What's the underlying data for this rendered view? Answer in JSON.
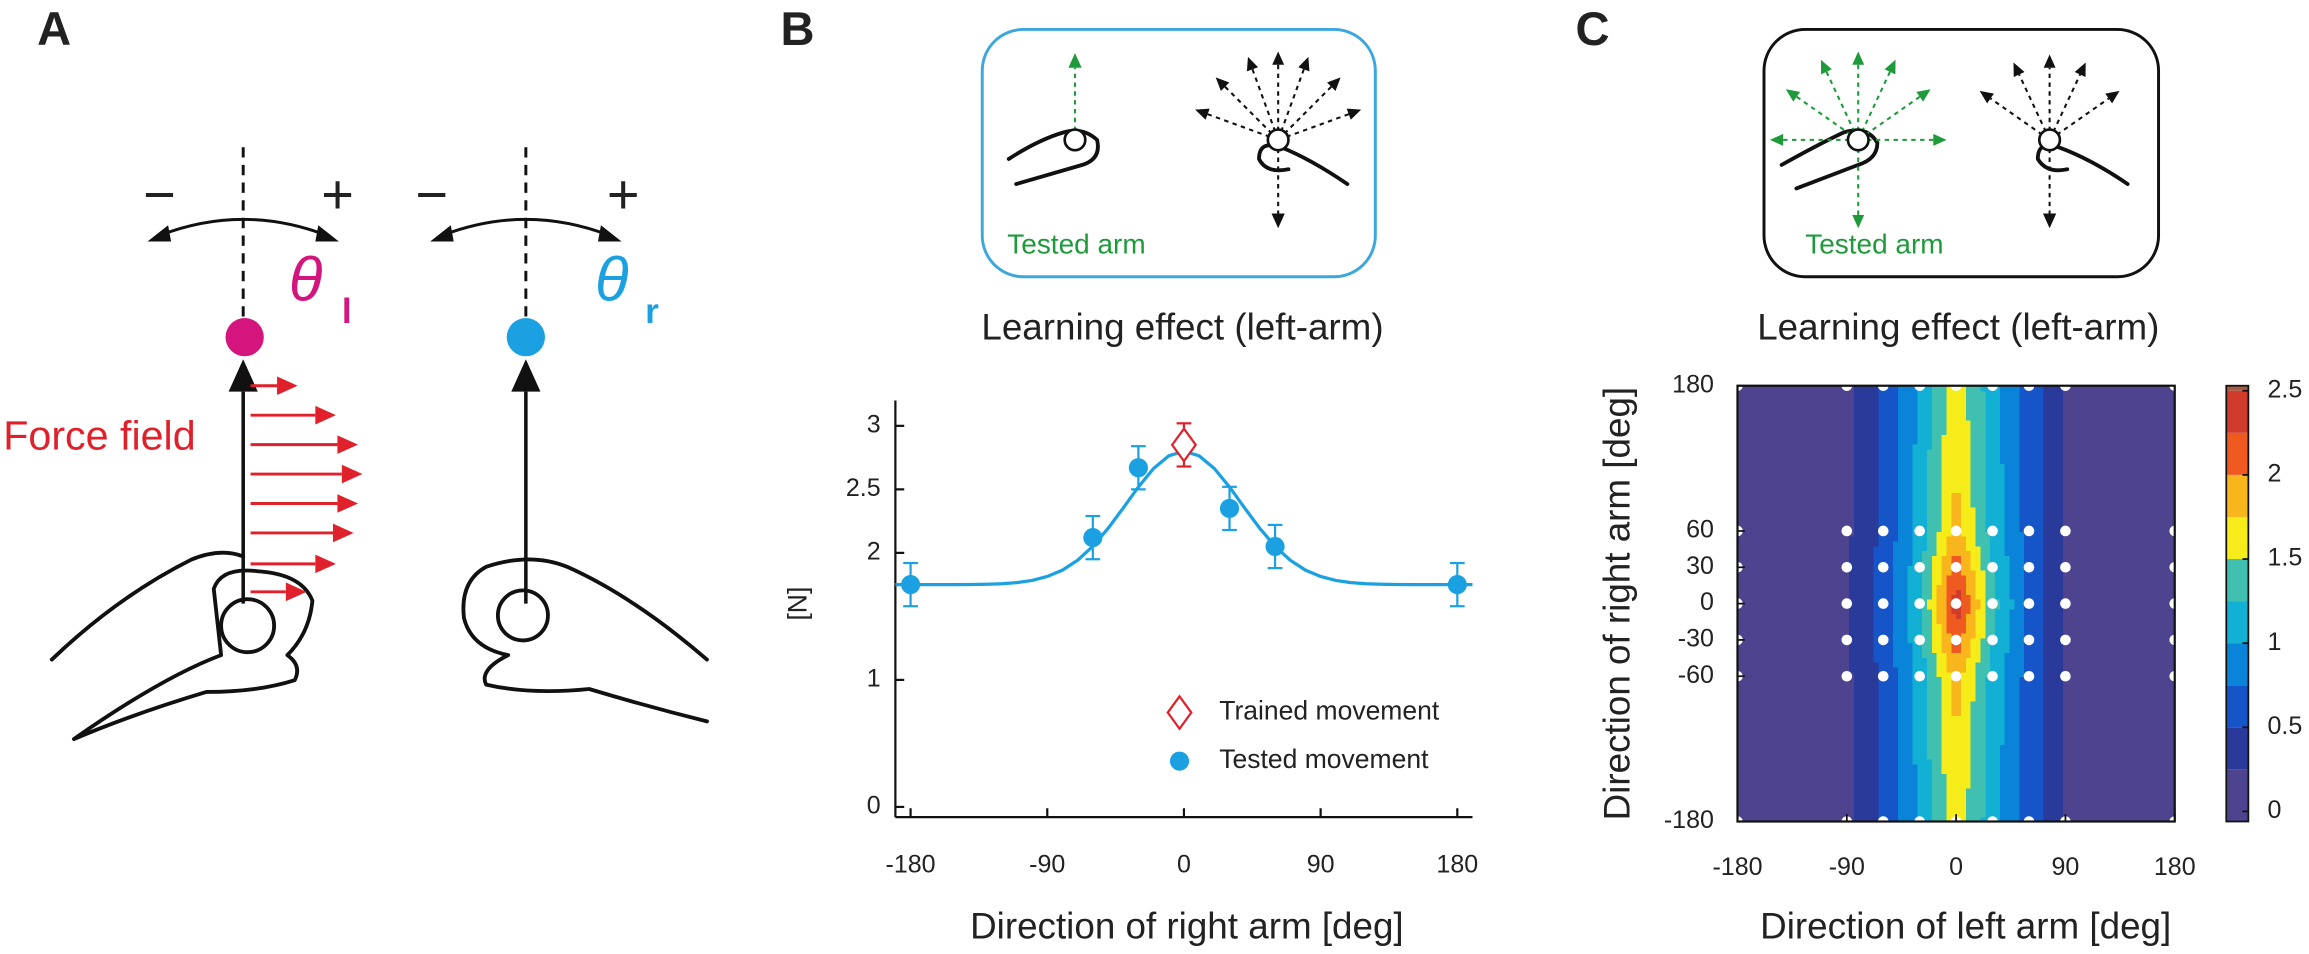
{
  "panel_a": {
    "label": "A",
    "left": {
      "minus": "−",
      "plus": "+",
      "theta": "θ",
      "subscript": "l"
    },
    "right": {
      "minus": "−",
      "plus": "+",
      "theta": "θ",
      "subscript": "r"
    },
    "force_field": "Force field"
  },
  "panel_b": {
    "label": "B",
    "inset_label": "Tested arm"
  },
  "panel_c": {
    "label": "C",
    "inset_label": "Tested arm"
  },
  "chart_data": [
    {
      "type": "errorbar",
      "title": "Learning effect (left-arm)",
      "xlabel": "Direction of right arm [deg]",
      "ylabel": "[N]",
      "xlim": [
        -190,
        190
      ],
      "ylim": [
        -0.08,
        3.2
      ],
      "xticks": [
        -180,
        -90,
        0,
        90,
        180
      ],
      "yticks": [
        0,
        1,
        2,
        2.5,
        3
      ],
      "series": [
        {
          "name": "Trained movement",
          "color": "#e0202a",
          "marker": "diamond",
          "x": [
            0
          ],
          "values": [
            2.85
          ],
          "errors": [
            0.17
          ]
        },
        {
          "name": "Tested movement",
          "color": "#1ba1e2",
          "marker": "circle",
          "x": [
            -180,
            -60,
            -30,
            30,
            60,
            180
          ],
          "values": [
            1.75,
            2.12,
            2.67,
            2.35,
            2.05,
            1.75
          ],
          "errors": [
            0.17,
            0.17,
            0.17,
            0.17,
            0.17,
            0.17
          ]
        }
      ],
      "fit": {
        "color": "#1ba1e2",
        "x": [
          -190,
          -180,
          -170,
          -160,
          -150,
          -140,
          -130,
          -120,
          -110,
          -100,
          -90,
          -80,
          -70,
          -60,
          -50,
          -40,
          -30,
          -20,
          -10,
          0,
          10,
          20,
          30,
          40,
          50,
          60,
          70,
          80,
          90,
          100,
          110,
          120,
          130,
          140,
          150,
          160,
          170,
          180,
          190
        ],
        "values": [
          1.75,
          1.75,
          1.75,
          1.75,
          1.75,
          1.751,
          1.753,
          1.757,
          1.766,
          1.783,
          1.814,
          1.864,
          1.942,
          2.052,
          2.192,
          2.353,
          2.519,
          2.664,
          2.764,
          2.8,
          2.764,
          2.664,
          2.519,
          2.353,
          2.192,
          2.052,
          1.942,
          1.864,
          1.814,
          1.783,
          1.766,
          1.757,
          1.753,
          1.751,
          1.75,
          1.75,
          1.75,
          1.75,
          1.75
        ]
      }
    },
    {
      "type": "contour",
      "title": "Learning effect (left-arm)",
      "xlabel": "Direction of left arm [deg]",
      "ylabel": "Direction of right arm [deg]",
      "xlim": [
        -180,
        180
      ],
      "ylim": [
        -180,
        180
      ],
      "xticks": [
        -180,
        -90,
        0,
        90,
        180
      ],
      "yticks": [
        180,
        60,
        30,
        0,
        -30,
        -60,
        -180
      ],
      "x": [
        -180,
        -90,
        -60,
        -30,
        0,
        30,
        60,
        90,
        180
      ],
      "y": [
        -180,
        -60,
        -30,
        0,
        30,
        60,
        180
      ],
      "z": [
        [
          0.15,
          0.2,
          0.55,
          1.05,
          1.65,
          1.1,
          0.65,
          0.2,
          0.15
        ],
        [
          0.15,
          0.2,
          0.55,
          1.1,
          1.85,
          1.15,
          0.65,
          0.2,
          0.15
        ],
        [
          0.15,
          0.22,
          0.6,
          1.15,
          2.15,
          1.25,
          0.7,
          0.2,
          0.15
        ],
        [
          0.15,
          0.25,
          0.6,
          1.2,
          2.4,
          1.35,
          0.7,
          0.22,
          0.15
        ],
        [
          0.15,
          0.22,
          0.6,
          1.15,
          2.15,
          1.25,
          0.7,
          0.2,
          0.15
        ],
        [
          0.15,
          0.2,
          0.55,
          1.1,
          1.85,
          1.15,
          0.65,
          0.2,
          0.15
        ],
        [
          0.15,
          0.2,
          0.55,
          1.05,
          1.65,
          1.1,
          0.65,
          0.2,
          0.15
        ]
      ],
      "colorbar": {
        "lim": [
          -0.06,
          2.53
        ],
        "ticks": [
          0,
          0.5,
          1,
          1.5,
          2,
          2.5
        ],
        "levels": [
          0.25,
          0.5,
          0.75,
          1,
          1.25,
          1.5,
          1.75,
          2,
          2.25,
          2.5
        ],
        "colors": [
          "#4d438f",
          "#2a3a9a",
          "#1555c8",
          "#0a84d8",
          "#12b0d4",
          "#3fc0b0",
          "#f5ec19",
          "#f9b51c",
          "#ee5a20",
          "#d03b2b",
          "#a85a45"
        ]
      }
    }
  ]
}
